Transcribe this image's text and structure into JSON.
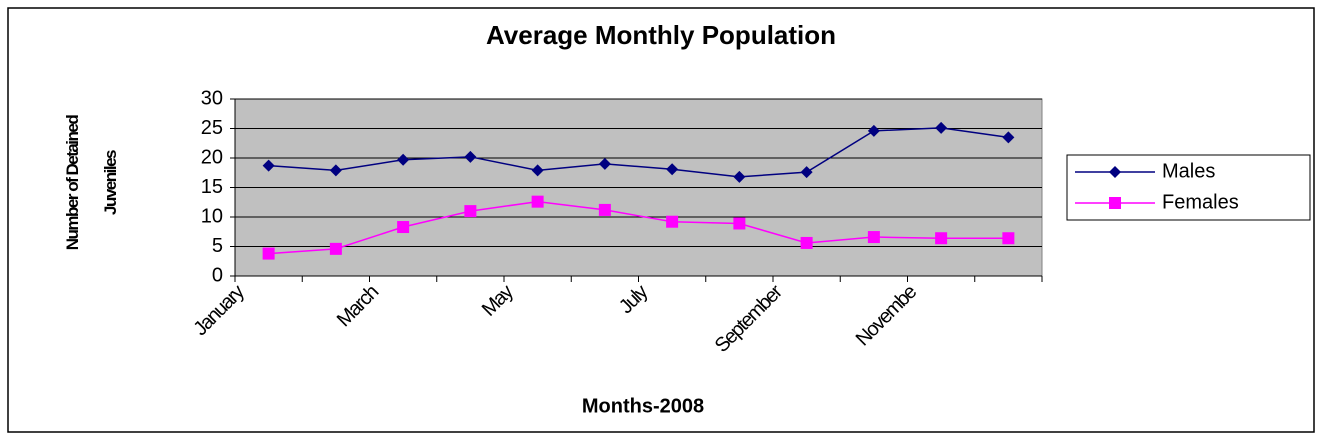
{
  "chart_data": {
    "type": "line",
    "title": "Average Monthly Population",
    "x_label": "Months-2008",
    "y_label": "Number of Detained Juveniles",
    "categories": [
      "January",
      null,
      "March",
      null,
      "May",
      null,
      "July",
      null,
      "September",
      null,
      "Novembe",
      null
    ],
    "series": [
      {
        "name": "Males",
        "color": "#000080",
        "marker": "diamond",
        "values": [
          18.7,
          17.9,
          19.7,
          20.2,
          17.9,
          19,
          18.1,
          16.8,
          17.6,
          24.6,
          25.1,
          23.5
        ]
      },
      {
        "name": "Females",
        "color": "#ff00ff",
        "marker": "square",
        "values": [
          3.8,
          4.6,
          8.3,
          11,
          12.6,
          11.2,
          9.2,
          8.9,
          5.6,
          6.6,
          6.4,
          6.4
        ]
      }
    ],
    "ylim": [
      0,
      30
    ],
    "yticks": [
      0,
      5,
      10,
      15,
      20,
      25,
      30
    ],
    "grid": true,
    "legend": "right"
  }
}
